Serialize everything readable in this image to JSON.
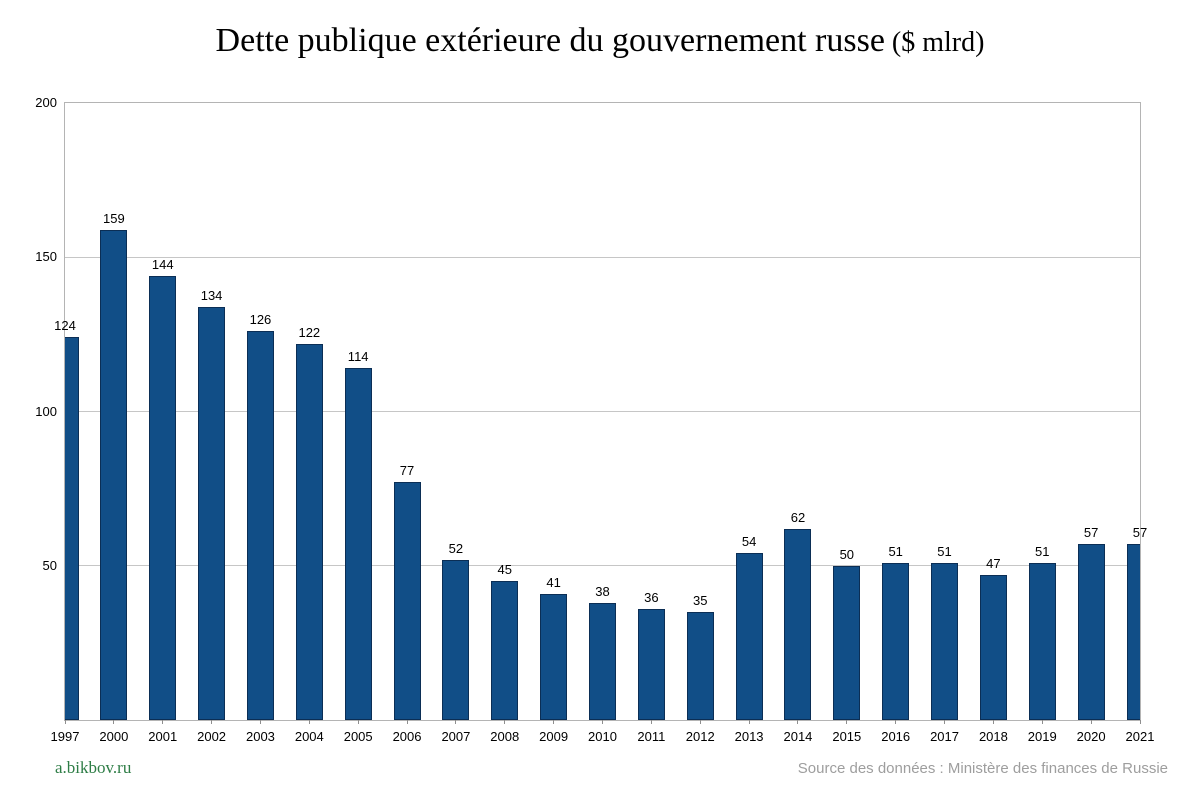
{
  "title": {
    "main": "Dette publique extérieure du gouvernement russe",
    "unit": " ($ mlrd)"
  },
  "footer": {
    "link": "a.bikbov.ru",
    "source": "Source des données : Ministère des finances de Russie"
  },
  "chart_data": {
    "type": "bar",
    "title": "Dette publique extérieure du gouvernement russe ($ mlrd)",
    "categories": [
      "1997",
      "2000",
      "2001",
      "2002",
      "2003",
      "2004",
      "2005",
      "2006",
      "2007",
      "2008",
      "2009",
      "2010",
      "2011",
      "2012",
      "2013",
      "2014",
      "2015",
      "2016",
      "2017",
      "2018",
      "2019",
      "2020",
      "2021"
    ],
    "values": [
      124,
      159,
      144,
      134,
      126,
      122,
      114,
      77,
      52,
      45,
      41,
      38,
      36,
      35,
      54,
      62,
      50,
      51,
      51,
      47,
      51,
      57,
      57
    ],
    "xlabel": "",
    "ylabel": "",
    "ylim": [
      0,
      200
    ],
    "yticks": [
      50,
      100,
      150,
      200
    ],
    "grid": true,
    "legend": "none",
    "bar_color": "#114e87",
    "bar_border_color": "#0b2e55",
    "grid_color": "#c6c6c6",
    "plot_border_color": "#b4b4b4"
  }
}
